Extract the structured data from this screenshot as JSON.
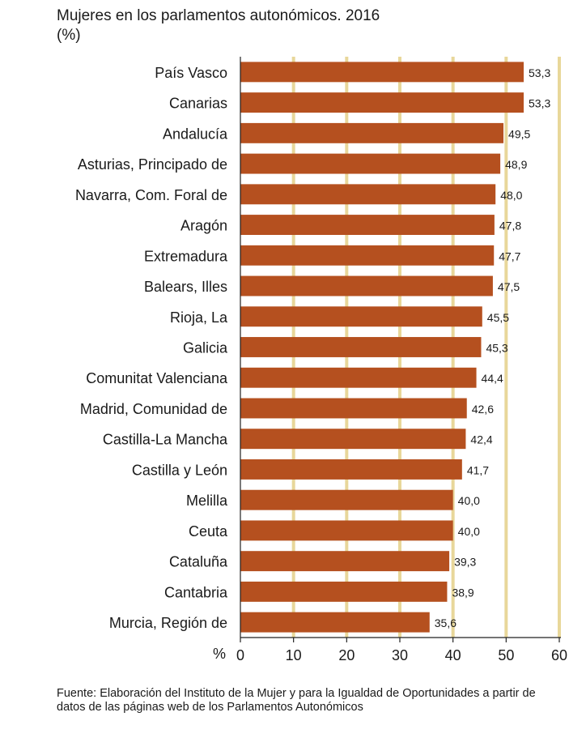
{
  "chart_data": {
    "type": "bar",
    "orientation": "horizontal",
    "title": "Mujeres en los parlamentos autonómicos. 2016",
    "subtitle": "(%)",
    "xlabel": "%",
    "categories": [
      "País Vasco",
      "Canarias",
      "Andalucía",
      "Asturias, Principado de",
      "Navarra, Com. Foral de",
      "Aragón",
      "Extremadura",
      "Balears, Illes",
      "Rioja, La",
      "Galicia",
      "Comunitat Valenciana",
      "Madrid, Comunidad de",
      "Castilla-La Mancha",
      "Castilla y León",
      "Melilla",
      "Ceuta",
      "Cataluña",
      "Cantabria",
      "Murcia, Región de"
    ],
    "values": [
      53.3,
      53.3,
      49.5,
      48.9,
      48.0,
      47.8,
      47.7,
      47.5,
      45.5,
      45.3,
      44.4,
      42.6,
      42.4,
      41.7,
      40.0,
      40.0,
      39.3,
      38.9,
      35.6
    ],
    "value_labels": [
      "53,3",
      "53,3",
      "49,5",
      "48,9",
      "48,0",
      "47,8",
      "47,7",
      "47,5",
      "45,5",
      "45,3",
      "44,4",
      "42,6",
      "42,4",
      "41,7",
      "40,0",
      "40,0",
      "39,3",
      "38,9",
      "35,6"
    ],
    "xticks": [
      "0",
      "10",
      "20",
      "30",
      "40",
      "50",
      "60"
    ],
    "xlim": [
      0,
      60
    ],
    "gridlines": [
      10,
      20,
      30,
      40,
      50,
      60
    ],
    "grid": true,
    "bar_color": "#b5501f",
    "grid_color": "#e8d79a",
    "source_note": "Fuente: Elaboración del Instituto de la Mujer y para la Igualdad de Oportunidades a partir de datos de las páginas web de los Parlamentos Autonómicos"
  }
}
